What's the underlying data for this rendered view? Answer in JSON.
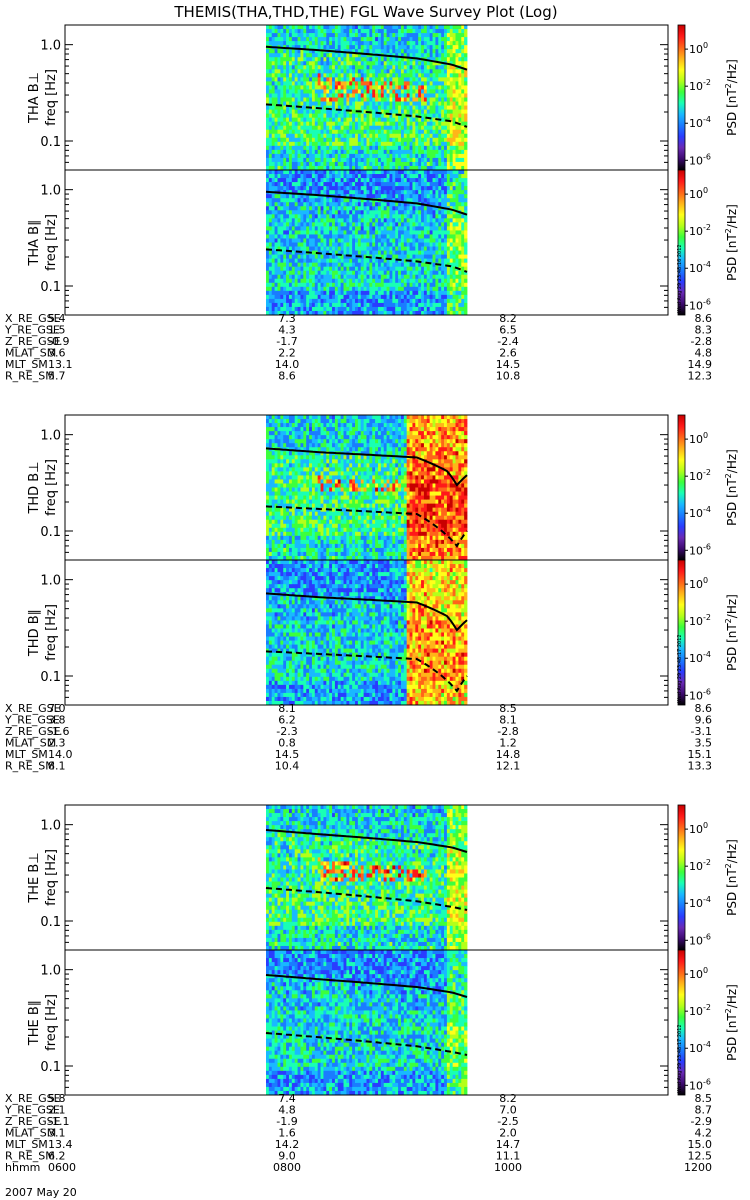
{
  "title": "THEMIS(THA,THD,THE) FGL Wave Survey Plot (Log)",
  "colorbar": {
    "label": "PSD [nT",
    "label_sup": "2",
    "label_end": "/Hz]",
    "tick_base": "10",
    "tick_exponents": [
      "0",
      "-2",
      "-4",
      "-6"
    ],
    "colors": [
      "#000000",
      "#3c0a6e",
      "#6a2ab5",
      "#2a3cff",
      "#1a7cff",
      "#19b9ff",
      "#19ffb4",
      "#3cff3c",
      "#b4ff19",
      "#ffff19",
      "#ffb419",
      "#ff6419",
      "#ff1919",
      "#c80000"
    ]
  },
  "timestamps": [
    "Wed Aug 29 23:48:16 2012",
    "Wed Aug 29 23:48:17 2012",
    "Wed Aug 29 23:48:17 2012"
  ],
  "chart_data": {
    "type": "heatmap",
    "x_range_hhmm": [
      "0600",
      "1200"
    ],
    "x_axis_label": "hhmm",
    "date": "2007 May 20",
    "freq_ylabel": "freq [Hz]",
    "freq_ticks": [
      "1.0",
      "0.1"
    ],
    "ylim_hz": [
      0.05,
      1.6
    ],
    "zlim_psd": [
      3e-07,
      20
    ],
    "data_coverage_hours": [
      8.0,
      10.0
    ],
    "panels": [
      {
        "probe": "THA",
        "component": "B⊥",
        "ylabel": "THA B⊥",
        "gyro_freq_line_hz": {
          "t": [
            8.0,
            8.5,
            9.0,
            9.5,
            9.85,
            10.0
          ],
          "f": [
            0.95,
            0.88,
            0.8,
            0.72,
            0.62,
            0.55
          ]
        },
        "half_gyro_line_hz": {
          "t": [
            8.0,
            8.5,
            9.0,
            9.5,
            9.85,
            10.0
          ],
          "f": [
            0.24,
            0.22,
            0.2,
            0.18,
            0.16,
            0.14
          ]
        }
      },
      {
        "probe": "THA",
        "component": "B∥",
        "ylabel": "THA B∥",
        "gyro_freq_line_hz": {
          "t": [
            8.0,
            8.5,
            9.0,
            9.5,
            9.85,
            10.0
          ],
          "f": [
            0.95,
            0.88,
            0.8,
            0.72,
            0.62,
            0.55
          ]
        },
        "half_gyro_line_hz": {
          "t": [
            8.0,
            8.5,
            9.0,
            9.5,
            9.85,
            10.0
          ],
          "f": [
            0.24,
            0.22,
            0.2,
            0.18,
            0.16,
            0.14
          ]
        }
      },
      {
        "probe": "THD",
        "component": "B⊥",
        "ylabel": "THD B⊥",
        "gyro_freq_line_hz": {
          "t": [
            8.0,
            8.5,
            9.0,
            9.5,
            9.8,
            9.9,
            10.0
          ],
          "f": [
            0.72,
            0.66,
            0.62,
            0.58,
            0.42,
            0.3,
            0.38
          ]
        },
        "half_gyro_line_hz": {
          "t": [
            8.0,
            8.5,
            9.0,
            9.5,
            9.8,
            9.9,
            10.0
          ],
          "f": [
            0.18,
            0.17,
            0.16,
            0.15,
            0.09,
            0.07,
            0.1
          ]
        }
      },
      {
        "probe": "THD",
        "component": "B∥",
        "ylabel": "THD B∥",
        "gyro_freq_line_hz": {
          "t": [
            8.0,
            8.5,
            9.0,
            9.5,
            9.8,
            9.9,
            10.0
          ],
          "f": [
            0.72,
            0.66,
            0.62,
            0.58,
            0.42,
            0.3,
            0.38
          ]
        },
        "half_gyro_line_hz": {
          "t": [
            8.0,
            8.5,
            9.0,
            9.5,
            9.8,
            9.9,
            10.0
          ],
          "f": [
            0.18,
            0.17,
            0.16,
            0.15,
            0.09,
            0.07,
            0.1
          ]
        }
      },
      {
        "probe": "THE",
        "component": "B⊥",
        "ylabel": "THE B⊥",
        "gyro_freq_line_hz": {
          "t": [
            8.0,
            8.5,
            9.0,
            9.5,
            9.85,
            10.0
          ],
          "f": [
            0.88,
            0.8,
            0.73,
            0.66,
            0.58,
            0.52
          ]
        },
        "half_gyro_line_hz": {
          "t": [
            8.0,
            8.5,
            9.0,
            9.5,
            9.85,
            10.0
          ],
          "f": [
            0.22,
            0.2,
            0.18,
            0.16,
            0.14,
            0.13
          ]
        }
      },
      {
        "probe": "THE",
        "component": "B∥",
        "ylabel": "THE B∥",
        "gyro_freq_line_hz": {
          "t": [
            8.0,
            8.5,
            9.0,
            9.5,
            9.85,
            10.0
          ],
          "f": [
            0.88,
            0.8,
            0.73,
            0.66,
            0.58,
            0.52
          ]
        },
        "half_gyro_line_hz": {
          "t": [
            8.0,
            8.5,
            9.0,
            9.5,
            9.85,
            10.0
          ],
          "f": [
            0.22,
            0.2,
            0.18,
            0.16,
            0.14,
            0.13
          ]
        }
      }
    ],
    "ephemeris": [
      {
        "probe": "THA",
        "rows": [
          {
            "label": "X_RE_GSE",
            "values": [
              "5.4",
              "7.3",
              "8.2",
              "8.6"
            ]
          },
          {
            "label": "Y_RE_GSE",
            "values": [
              "1.5",
              "4.3",
              "6.5",
              "8.3"
            ]
          },
          {
            "label": "Z_RE_GSE",
            "values": [
              "-0.9",
              "-1.7",
              "-2.4",
              "-2.8"
            ]
          },
          {
            "label": "MLAT_SM",
            "values": [
              "3.6",
              "2.2",
              "2.6",
              "4.8"
            ]
          },
          {
            "label": "MLT_SM",
            "values": [
              "13.1",
              "14.0",
              "14.5",
              "14.9"
            ]
          },
          {
            "label": "R_RE_SM",
            "values": [
              "5.7",
              "8.6",
              "10.8",
              "12.3"
            ]
          }
        ]
      },
      {
        "probe": "THD",
        "rows": [
          {
            "label": "X_RE_GSE",
            "values": [
              "7.0",
              "8.1",
              "8.5",
              "8.6"
            ]
          },
          {
            "label": "Y_RE_GSE",
            "values": [
              "3.8",
              "6.2",
              "8.1",
              "9.6"
            ]
          },
          {
            "label": "Z_RE_GSE",
            "values": [
              "-1.6",
              "-2.3",
              "-2.8",
              "-3.1"
            ]
          },
          {
            "label": "MLAT_SM",
            "values": [
              "2.3",
              "0.8",
              "1.2",
              "3.5"
            ]
          },
          {
            "label": "MLT_SM",
            "values": [
              "14.0",
              "14.5",
              "14.8",
              "15.1"
            ]
          },
          {
            "label": "R_RE_SM",
            "values": [
              "8.1",
              "10.4",
              "12.1",
              "13.3"
            ]
          }
        ]
      },
      {
        "probe": "THE",
        "rows": [
          {
            "label": "X_RE_GSE",
            "values": [
              "5.8",
              "7.4",
              "8.2",
              "8.5"
            ]
          },
          {
            "label": "Y_RE_GSE",
            "values": [
              "2.1",
              "4.8",
              "7.0",
              "8.7"
            ]
          },
          {
            "label": "Z_RE_GSE",
            "values": [
              "-1.1",
              "-1.9",
              "-2.5",
              "-2.9"
            ]
          },
          {
            "label": "MLAT_SM",
            "values": [
              "3.1",
              "1.6",
              "2.0",
              "4.2"
            ]
          },
          {
            "label": "MLT_SM",
            "values": [
              "13.4",
              "14.2",
              "14.7",
              "15.0"
            ]
          },
          {
            "label": "R_RE_SM",
            "values": [
              "6.2",
              "9.0",
              "11.1",
              "12.5"
            ]
          },
          {
            "label": "hhmm",
            "values": [
              "0600",
              "0800",
              "1000",
              "1200"
            ]
          }
        ]
      }
    ]
  }
}
